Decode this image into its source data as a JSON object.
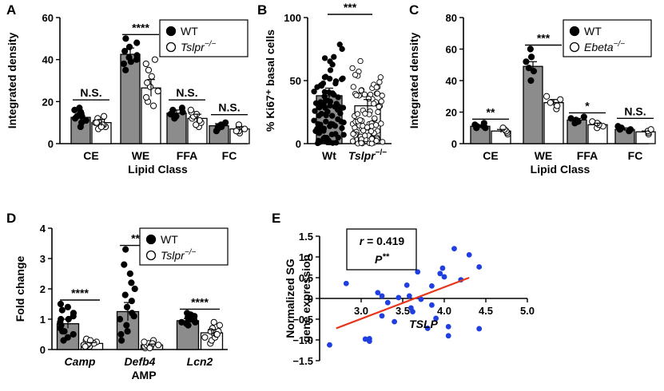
{
  "panel_labels": [
    "A",
    "B",
    "C",
    "D",
    "E"
  ],
  "chart_data": [
    {
      "id": "A",
      "type": "bar",
      "ylabel": "Integrated density",
      "xlabel": "Lipid Class",
      "ylim": [
        0,
        60
      ],
      "yticks": [
        "0",
        "20",
        "40",
        "60"
      ],
      "categories": [
        "CE",
        "WE",
        "FFA",
        "FC"
      ],
      "series": [
        {
          "name": "WT",
          "values": [
            12.5,
            42.5,
            14.5,
            8.5
          ],
          "errors": [
            2,
            3,
            1.5,
            1
          ]
        },
        {
          "name": "Tslpr−/−",
          "values": [
            10,
            26.5,
            12,
            7
          ],
          "errors": [
            1.5,
            4,
            2,
            1
          ]
        }
      ],
      "points": [
        [
          [
            8,
            10,
            12,
            13,
            14,
            15,
            16,
            11,
            13,
            17
          ],
          [
            7,
            8,
            9,
            10,
            11,
            12,
            13,
            10,
            9,
            8
          ]
        ],
        [
          [
            35,
            38,
            40,
            42,
            44,
            46,
            48,
            50,
            41,
            39
          ],
          [
            18,
            20,
            22,
            25,
            27,
            29,
            32,
            35,
            38,
            40
          ]
        ],
        [
          [
            12,
            13,
            14,
            15,
            16,
            17,
            13,
            14
          ],
          [
            8,
            9,
            10,
            11,
            12,
            13,
            14,
            15,
            16
          ]
        ],
        [
          [
            7,
            8,
            9,
            10,
            6,
            8
          ],
          [
            5,
            6,
            7,
            8,
            9,
            6
          ]
        ]
      ],
      "significance": [
        "N.S.",
        "****",
        "N.S.",
        "N.S."
      ],
      "legend": [
        {
          "marker": "filled",
          "label": "WT"
        },
        {
          "marker": "open",
          "label": "Tslpr",
          "suffix": "−/−",
          "italic": true
        }
      ]
    },
    {
      "id": "B",
      "type": "bar",
      "ylabel": "% Ki67⁺ basal cells",
      "ylim": [
        0,
        100
      ],
      "yticks": [
        "0",
        "50",
        "100"
      ],
      "categories": [
        "Wt",
        "Tslpr−/−"
      ],
      "values": [
        38,
        30
      ],
      "errors": [
        6,
        5
      ],
      "point_ranges": [
        [
          0,
          97
        ],
        [
          0,
          68
        ]
      ],
      "significance": [
        "***"
      ]
    },
    {
      "id": "C",
      "type": "bar",
      "ylabel": "Integrated density",
      "xlabel": "Lipid Class",
      "ylim": [
        0,
        80
      ],
      "yticks": [
        "0",
        "20",
        "40",
        "60",
        "80"
      ],
      "categories": [
        "CE",
        "WE",
        "FFA",
        "FC"
      ],
      "series": [
        {
          "name": "WT",
          "values": [
            11,
            49,
            15,
            9
          ],
          "errors": [
            1,
            3,
            1,
            1
          ]
        },
        {
          "name": "Ebeta−/−",
          "values": [
            8,
            26,
            12,
            7.5
          ],
          "errors": [
            1,
            2,
            1,
            0.5
          ]
        }
      ],
      "points": [
        [
          [
            10,
            11,
            12,
            11,
            13,
            10
          ],
          [
            46,
            52,
            60,
            40,
            48,
            55
          ],
          [
            13,
            14,
            15,
            16,
            17
          ],
          [
            8,
            9,
            10,
            11,
            9
          ]
        ],
        [
          [
            6,
            7,
            8,
            9,
            10
          ],
          [
            22,
            24,
            26,
            28,
            30
          ],
          [
            10,
            11,
            12,
            13,
            14
          ],
          [
            6,
            7,
            8,
            9
          ]
        ]
      ],
      "significance": [
        "**",
        "***",
        "*",
        "N.S."
      ],
      "legend": [
        {
          "marker": "filled",
          "label": "WT"
        },
        {
          "marker": "open",
          "label": "Ebeta",
          "suffix": "−/−",
          "italic": true
        }
      ]
    },
    {
      "id": "D",
      "type": "bar",
      "ylabel": "Fold change",
      "xlabel": "AMP",
      "ylim": [
        0,
        4
      ],
      "yticks": [
        "0",
        "1",
        "2",
        "3",
        "4"
      ],
      "categories": [
        "Camp",
        "Defb4",
        "Lcn2"
      ],
      "series": [
        {
          "name": "WT",
          "values": [
            0.85,
            1.25,
            0.95
          ],
          "errors": [
            0.15,
            0.3,
            0.07
          ]
        },
        {
          "name": "Tslpr−/−",
          "values": [
            0.2,
            0.15,
            0.55
          ],
          "errors": [
            0.03,
            0.03,
            0.1
          ]
        }
      ],
      "points": [
        [
          [
            0.3,
            0.5,
            0.6,
            0.7,
            0.8,
            0.9,
            1.0,
            1.1,
            1.2,
            1.3,
            1.4,
            1.5,
            0.6,
            0.4,
            1.0
          ],
          [
            0.1,
            0.15,
            0.2,
            0.25,
            0.3,
            0.35,
            0.15,
            0.2,
            0.1,
            0.3
          ]
        ],
        [
          [
            0.3,
            0.6,
            0.8,
            1.0,
            1.2,
            1.4,
            1.6,
            1.8,
            2.0,
            2.2,
            2.5,
            2.8,
            3.3,
            0.5,
            1.1
          ],
          [
            0.05,
            0.1,
            0.15,
            0.2,
            0.25,
            0.3,
            0.1,
            0.05,
            0.2,
            0.15
          ]
        ],
        [
          [
            0.8,
            0.85,
            0.9,
            0.95,
            1.0,
            1.05,
            1.1,
            1.15,
            1.2,
            0.9,
            1.0
          ],
          [
            0.2,
            0.3,
            0.4,
            0.5,
            0.6,
            0.7,
            0.8,
            0.9,
            0.5,
            0.6,
            0.4
          ]
        ]
      ],
      "significance": [
        "****",
        "****",
        "****"
      ],
      "legend": [
        {
          "marker": "filled",
          "label": "WT"
        },
        {
          "marker": "open",
          "label": "Tslpr",
          "suffix": "−/−",
          "italic": true
        }
      ]
    },
    {
      "id": "E",
      "type": "scatter",
      "xlabel": "TSLP",
      "ylabel_lines": [
        "Normalized SG",
        "gene expression"
      ],
      "xlim": [
        2.5,
        5.0
      ],
      "ylim": [
        -1.5,
        1.5
      ],
      "xticks": [
        "3.0",
        "3.5",
        "4.0",
        "4.5",
        "5.0"
      ],
      "yticks": [
        "1.5",
        "1.0",
        "0.5",
        "0",
        "−0.5",
        "−1.0",
        "−1.5"
      ],
      "points": [
        [
          2.62,
          -1.12
        ],
        [
          2.82,
          0.36
        ],
        [
          3.05,
          -0.98
        ],
        [
          3.1,
          -1.03
        ],
        [
          3.1,
          -0.97
        ],
        [
          3.2,
          0.14
        ],
        [
          3.25,
          -0.42
        ],
        [
          3.25,
          0.06
        ],
        [
          3.32,
          -0.1
        ],
        [
          3.4,
          -0.56
        ],
        [
          3.45,
          0.02
        ],
        [
          3.5,
          0.84
        ],
        [
          3.55,
          0.32
        ],
        [
          3.58,
          0.06
        ],
        [
          3.6,
          -0.23
        ],
        [
          3.62,
          -0.32
        ],
        [
          3.68,
          0.64
        ],
        [
          3.72,
          -0.02
        ],
        [
          3.8,
          -0.72
        ],
        [
          3.85,
          -0.16
        ],
        [
          3.85,
          0.3
        ],
        [
          3.9,
          -0.48
        ],
        [
          3.95,
          0.6
        ],
        [
          3.98,
          0.73
        ],
        [
          4.0,
          0.52
        ],
        [
          4.05,
          -0.9
        ],
        [
          4.05,
          -0.68
        ],
        [
          4.12,
          1.2
        ],
        [
          4.2,
          0.45
        ],
        [
          4.3,
          1.05
        ],
        [
          4.42,
          0.76
        ],
        [
          4.42,
          -0.73
        ]
      ],
      "fit_line": [
        [
          2.7,
          -0.72
        ],
        [
          4.3,
          0.5
        ]
      ],
      "annotation": {
        "r_label": "r",
        "r_text": " = 0.419",
        "p_label": "P",
        "p_text": "**"
      }
    }
  ]
}
